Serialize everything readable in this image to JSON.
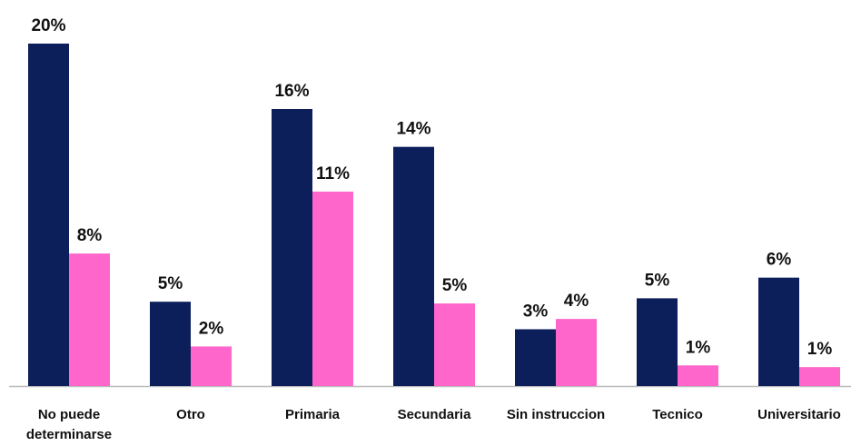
{
  "chart_data": {
    "type": "bar",
    "categories": [
      "No puede determinarse",
      "Otro",
      "Primaria",
      "Secundaria",
      "Sin instruccion",
      "Tecnico",
      "Universitario"
    ],
    "series": [
      {
        "color": "#0c1f5b",
        "values": [
          19.9,
          4.9,
          16.1,
          13.9,
          3.3,
          5.1,
          6.3
        ],
        "value_labels": [
          "20%",
          "5%",
          "16%",
          "14%",
          "3%",
          "5%",
          "6%"
        ]
      },
      {
        "color": "#ff66cc",
        "values": [
          7.7,
          2.3,
          11.3,
          4.8,
          3.9,
          1.2,
          1.1
        ],
        "value_labels": [
          "8%",
          "2%",
          "11%",
          "5%",
          "4%",
          "1%",
          "1%"
        ]
      }
    ]
  }
}
